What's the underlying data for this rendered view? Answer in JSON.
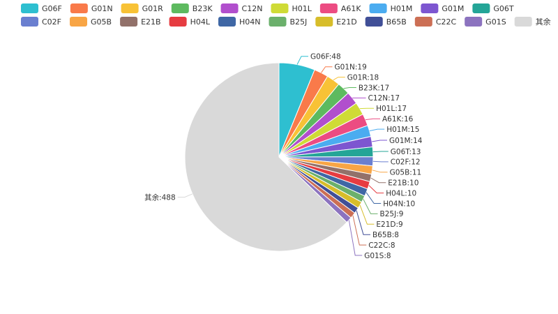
{
  "chart_data": {
    "type": "pie",
    "title": "",
    "legend_position": "top-left",
    "start_angle_deg": 90,
    "direction": "clockwise",
    "slices": [
      {
        "name": "G06F",
        "value": 48,
        "label": "G06F:48",
        "color": "#2ebfd0"
      },
      {
        "name": "G01N",
        "value": 19,
        "label": "G01N:19",
        "color": "#f97a4a"
      },
      {
        "name": "G01R",
        "value": 18,
        "label": "G01R:18",
        "color": "#f8c236"
      },
      {
        "name": "B23K",
        "value": 17,
        "label": "B23K:17",
        "color": "#5dba5f"
      },
      {
        "name": "C12N",
        "value": 17,
        "label": "C12N:17",
        "color": "#b14fcd"
      },
      {
        "name": "H01L",
        "value": 17,
        "label": "H01L:17",
        "color": "#cfdb36"
      },
      {
        "name": "A61K",
        "value": 16,
        "label": "A61K:16",
        "color": "#ec4c82"
      },
      {
        "name": "H01M",
        "value": 15,
        "label": "H01M:15",
        "color": "#4bacf0"
      },
      {
        "name": "G01M",
        "value": 14,
        "label": "G01M:14",
        "color": "#7d56d0"
      },
      {
        "name": "G06T",
        "value": 13,
        "label": "G06T:13",
        "color": "#24a597"
      },
      {
        "name": "C02F",
        "value": 12,
        "label": "C02F:12",
        "color": "#6a7fd0"
      },
      {
        "name": "G05B",
        "value": 11,
        "label": "G05B:11",
        "color": "#f8a545"
      },
      {
        "name": "E21B",
        "value": 10,
        "label": "E21B:10",
        "color": "#92716a"
      },
      {
        "name": "H04L",
        "value": 10,
        "label": "H04L:10",
        "color": "#e63c41"
      },
      {
        "name": "H04N",
        "value": 10,
        "label": "H04N:10",
        "color": "#3f67a5"
      },
      {
        "name": "B25J",
        "value": 9,
        "label": "B25J:9",
        "color": "#6bb06c"
      },
      {
        "name": "E21D",
        "value": 9,
        "label": "E21D:9",
        "color": "#d7bd2a"
      },
      {
        "name": "B65B",
        "value": 8,
        "label": "B65B:8",
        "color": "#404f97"
      },
      {
        "name": "C22C",
        "value": 8,
        "label": "C22C:8",
        "color": "#cc6f55"
      },
      {
        "name": "G01S",
        "value": 8,
        "label": "G01S:8",
        "color": "#8c73bf"
      },
      {
        "name": "其余",
        "value": 488,
        "label": "其余:488",
        "color": "#d9d9d9"
      }
    ]
  }
}
